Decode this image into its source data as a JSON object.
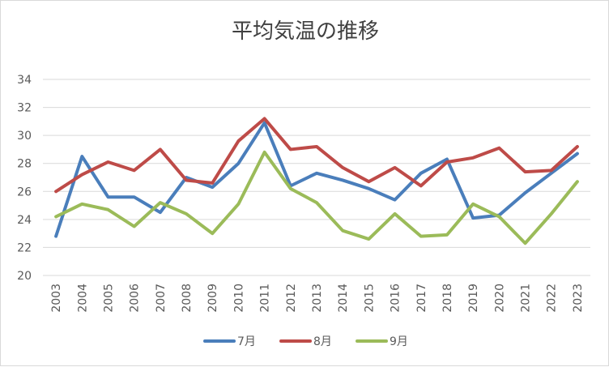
{
  "chart_data": {
    "type": "line",
    "title": "平均気温の推移",
    "xlabel": "",
    "ylabel": "",
    "ylim": [
      20,
      34
    ],
    "yticks": [
      20,
      22,
      24,
      26,
      28,
      30,
      32,
      34
    ],
    "grid": true,
    "legend_position": "bottom",
    "categories": [
      "2003",
      "2004",
      "2005",
      "2006",
      "2007",
      "2008",
      "2009",
      "2010",
      "2011",
      "2012",
      "2013",
      "2014",
      "2015",
      "2016",
      "2017",
      "2018",
      "2019",
      "2020",
      "2021",
      "2022",
      "2023"
    ],
    "series": [
      {
        "name": "7月",
        "color": "#4a7ebb",
        "values": [
          22.8,
          28.5,
          25.6,
          25.6,
          24.5,
          27.0,
          26.3,
          28.0,
          30.9,
          26.4,
          27.3,
          26.8,
          26.2,
          25.4,
          27.3,
          28.3,
          24.1,
          24.3,
          25.9,
          27.3,
          28.7
        ]
      },
      {
        "name": "8月",
        "color": "#be4b48",
        "values": [
          26.0,
          27.2,
          28.1,
          27.5,
          29.0,
          26.8,
          26.6,
          29.6,
          31.2,
          29.0,
          29.2,
          27.7,
          26.7,
          27.7,
          26.4,
          28.1,
          28.4,
          29.1,
          27.4,
          27.5,
          29.2
        ]
      },
      {
        "name": "9月",
        "color": "#9bbb59",
        "values": [
          24.2,
          25.1,
          24.7,
          23.5,
          25.2,
          24.4,
          23.0,
          25.1,
          28.8,
          26.2,
          25.2,
          23.2,
          22.6,
          24.4,
          22.8,
          22.9,
          25.1,
          24.2,
          22.3,
          24.4,
          26.7
        ]
      }
    ]
  }
}
